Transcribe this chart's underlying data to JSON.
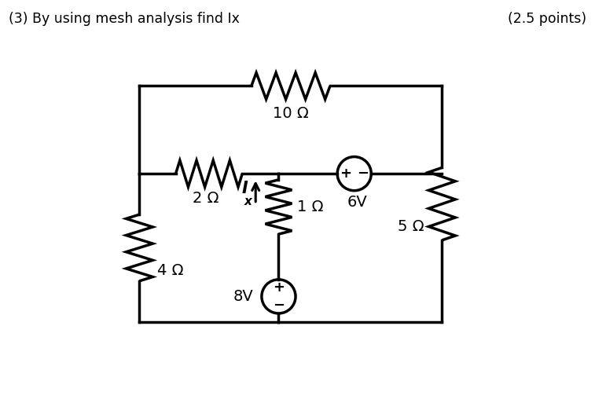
{
  "title_left": "(3) By using mesh analysis find Ix",
  "title_right": "(2.5 points)",
  "title_fontsize": 12.5,
  "bg_color": "#ffffff",
  "line_color": "#000000",
  "line_width": 2.5,
  "labels": {
    "10ohm": "10 Ω",
    "2ohm": "2 Ω",
    "1ohm": "1 Ω",
    "4ohm": "4 Ω",
    "5ohm": "5 Ω",
    "6V": "6V",
    "8V": "8V",
    "Ix": "I"
  },
  "label_fontsize": 14,
  "label_fontsize_sub": 11
}
